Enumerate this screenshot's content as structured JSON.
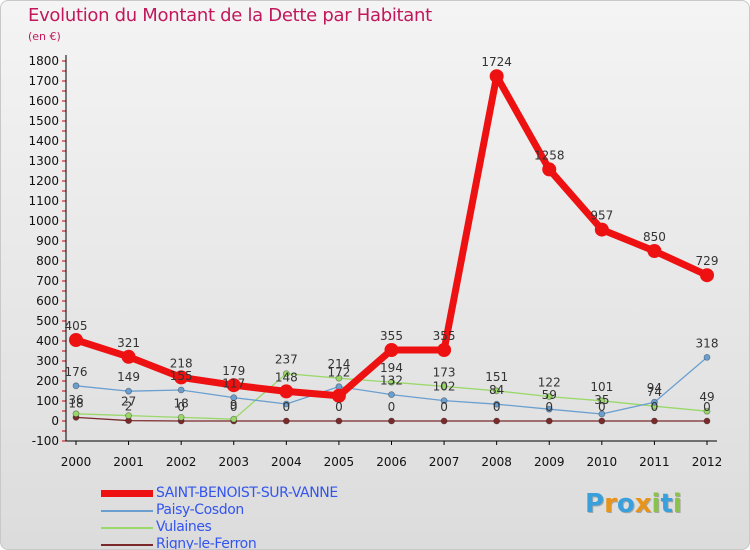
{
  "chart": {
    "title": "Evolution du Montant de la Dette par Habitant",
    "subtitle": "(en €)"
  },
  "colors": {
    "title": "#c2185b",
    "legend_text": "#3355ee",
    "axis": "#000000"
  },
  "logo": {
    "text": "Proxiti",
    "letter_colors": [
      "#3aa0dc",
      "#e8941a",
      "#3aa0dc",
      "#e8941a",
      "#8ac24a",
      "#3aa0dc",
      "#8ac24a"
    ]
  },
  "chart_data": {
    "type": "line",
    "x": [
      "2000",
      "2001",
      "2002",
      "2003",
      "2004",
      "2005",
      "2006",
      "2007",
      "2008",
      "2009",
      "2010",
      "2011",
      "2012"
    ],
    "ylim": [
      -100,
      1800
    ],
    "yticks": [
      -100,
      0,
      100,
      200,
      300,
      400,
      500,
      600,
      700,
      800,
      900,
      1000,
      1100,
      1200,
      1300,
      1400,
      1500,
      1600,
      1700,
      1800
    ],
    "grid": false,
    "legend_position": "bottom-left",
    "series": [
      {
        "name": "SAINT-BENOIST-SUR-VANNE",
        "color": "#ee1111",
        "values": [
          405,
          321,
          218,
          179,
          148,
          126,
          355,
          355,
          1724,
          1258,
          957,
          850,
          729
        ],
        "labels": [
          "405",
          "321",
          "218",
          "179",
          "148",
          "",
          "355",
          "355",
          "1724",
          "1258",
          "957",
          "850",
          "729"
        ]
      },
      {
        "name": "Paisy-Cosdon",
        "color": "#6a9fd0",
        "values": [
          176,
          149,
          155,
          117,
          85,
          172,
          132,
          102,
          84,
          59,
          35,
          94,
          318
        ],
        "labels": [
          "176",
          "149",
          "155",
          "117",
          "",
          "172",
          "132",
          "102",
          "84",
          "59",
          "35",
          "94",
          "318"
        ]
      },
      {
        "name": "Vulaines",
        "color": "#9ad86a",
        "values": [
          36,
          27,
          18,
          9,
          237,
          214,
          194,
          173,
          151,
          122,
          101,
          74,
          49
        ],
        "labels": [
          "36",
          "27",
          "18",
          "9",
          "237",
          "214",
          "194",
          "173",
          "151",
          "122",
          "101",
          "74",
          "49"
        ]
      },
      {
        "name": "Rigny-le-Ferron",
        "color": "#7a2a2a",
        "values": [
          18,
          2,
          0,
          0,
          0,
          0,
          0,
          0,
          0,
          0,
          0,
          0,
          0
        ],
        "labels": [
          "18",
          "2",
          "0",
          "0",
          "0",
          "0",
          "0",
          "0",
          "0",
          "0",
          "0",
          "0",
          "0"
        ]
      }
    ]
  }
}
